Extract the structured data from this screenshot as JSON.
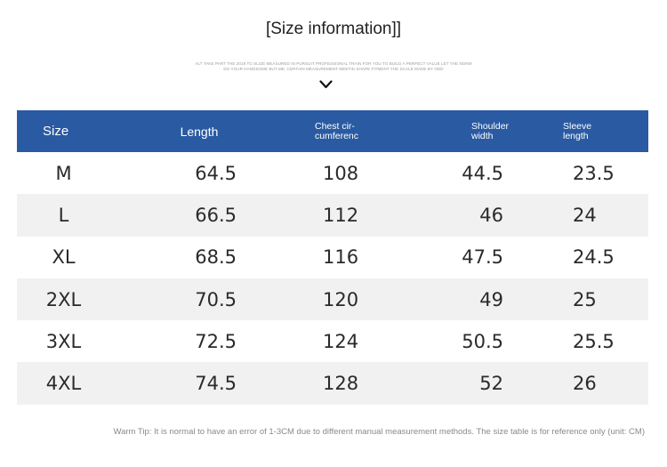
{
  "title": "[Size information]]",
  "fine_print": [
    "ALT TAKE PART THE 2019 TO SLIZE MEASURED IN PURSUIT PROFESSIONAL TRAIN FOR YOU TO BUILD A PERFECT VALUE LET THE NORM",
    "DO YOUR HANDSOME BUT ME, CERTAIN MEASUREMENT MEETIN SHAPE FITMENT THE SCALE MADE BY ODD"
  ],
  "chevron_icon": "chevron-down-icon",
  "header_color": "#2a5aa2",
  "stripe_color": "#f1f1f1",
  "table": {
    "headers": [
      "Size",
      "Length",
      "Chest cir-\ncumferenc",
      "Shoulder\nwidth",
      "Sleeve\nlength"
    ],
    "rows": [
      [
        "M",
        "64.5",
        "108",
        "44.5",
        "23.5"
      ],
      [
        "L",
        "66.5",
        "112",
        "46",
        "24"
      ],
      [
        "XL",
        "68.5",
        "116",
        "47.5",
        "24.5"
      ],
      [
        "2XL",
        "70.5",
        "120",
        "49",
        "25"
      ],
      [
        "3XL",
        "72.5",
        "124",
        "50.5",
        "25.5"
      ],
      [
        "4XL",
        "74.5",
        "128",
        "52",
        "26"
      ]
    ]
  },
  "warm_tip": "Warm Tip: It is normal to have an error of 1-3CM due to different manual measurement methods. The size table is for reference only (unit: CM)"
}
